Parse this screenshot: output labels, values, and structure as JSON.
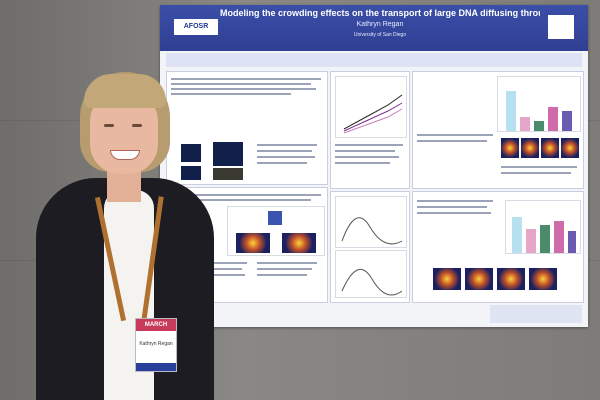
{
  "poster": {
    "title": "Modeling the crowding effects on the transport of large DNA diffusing through Cytoskeletal Networks",
    "authors": "Kathryn Regan",
    "affiliation": "University of San Diego",
    "logo_left": "AFOSR",
    "accent_color": "#2f3f93"
  },
  "badge": {
    "band_text": "MARCH",
    "name": "Kathryn Regan"
  }
}
